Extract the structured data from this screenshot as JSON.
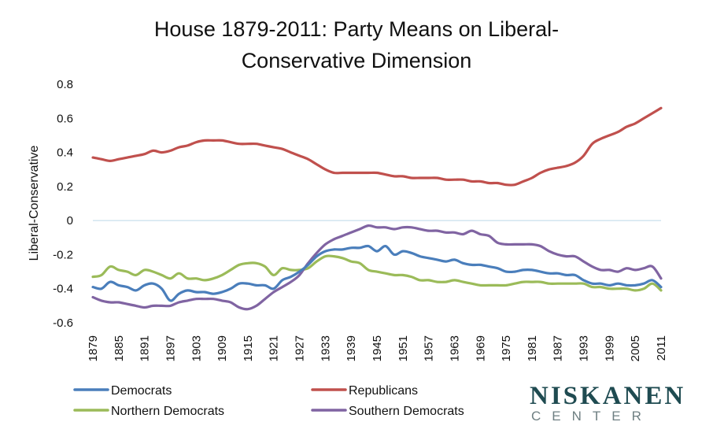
{
  "chart_data": {
    "type": "line",
    "title_lines": [
      "House 1879-2011: Party Means on Liberal-",
      "Conservative Dimension"
    ],
    "ylabel": "Liberal-Conservative",
    "xlabel": "",
    "ylim": [
      -0.6,
      0.8
    ],
    "yticks": [
      "-0.6",
      "-0.4",
      "-0.2",
      "0",
      "0.2",
      "0.4",
      "0.6",
      "0.8"
    ],
    "xticks": [
      "1879",
      "1885",
      "1891",
      "1897",
      "1903",
      "1909",
      "1915",
      "1921",
      "1927",
      "1933",
      "1939",
      "1945",
      "1951",
      "1957",
      "1963",
      "1969",
      "1975",
      "1981",
      "1987",
      "1993",
      "1999",
      "2005",
      "2011"
    ],
    "xrange": [
      1879,
      2011
    ],
    "legend_position": "bottom",
    "x": [
      1879,
      1881,
      1883,
      1885,
      1887,
      1889,
      1891,
      1893,
      1895,
      1897,
      1899,
      1901,
      1903,
      1905,
      1907,
      1909,
      1911,
      1913,
      1915,
      1917,
      1919,
      1921,
      1923,
      1925,
      1927,
      1929,
      1931,
      1933,
      1935,
      1937,
      1939,
      1941,
      1943,
      1945,
      1947,
      1949,
      1951,
      1953,
      1955,
      1957,
      1959,
      1961,
      1963,
      1965,
      1967,
      1969,
      1971,
      1973,
      1975,
      1977,
      1979,
      1981,
      1983,
      1985,
      1987,
      1989,
      1991,
      1993,
      1995,
      1997,
      1999,
      2001,
      2003,
      2005,
      2007,
      2009,
      2011
    ],
    "series": [
      {
        "name": "Democrats",
        "color": "#4a7ebb",
        "values": [
          -0.39,
          -0.4,
          -0.36,
          -0.38,
          -0.39,
          -0.41,
          -0.38,
          -0.37,
          -0.4,
          -0.47,
          -0.43,
          -0.41,
          -0.42,
          -0.42,
          -0.43,
          -0.42,
          -0.4,
          -0.37,
          -0.37,
          -0.38,
          -0.38,
          -0.4,
          -0.35,
          -0.33,
          -0.3,
          -0.26,
          -0.21,
          -0.18,
          -0.17,
          -0.17,
          -0.16,
          -0.16,
          -0.15,
          -0.18,
          -0.15,
          -0.2,
          -0.18,
          -0.19,
          -0.21,
          -0.22,
          -0.23,
          -0.24,
          -0.23,
          -0.25,
          -0.26,
          -0.26,
          -0.27,
          -0.28,
          -0.3,
          -0.3,
          -0.29,
          -0.29,
          -0.3,
          -0.31,
          -0.31,
          -0.32,
          -0.32,
          -0.35,
          -0.37,
          -0.37,
          -0.38,
          -0.37,
          -0.38,
          -0.38,
          -0.37,
          -0.35,
          -0.39
        ]
      },
      {
        "name": "Republicans",
        "color": "#c0504d",
        "values": [
          0.37,
          0.36,
          0.35,
          0.36,
          0.37,
          0.38,
          0.39,
          0.41,
          0.4,
          0.41,
          0.43,
          0.44,
          0.46,
          0.47,
          0.47,
          0.47,
          0.46,
          0.45,
          0.45,
          0.45,
          0.44,
          0.43,
          0.42,
          0.4,
          0.38,
          0.36,
          0.33,
          0.3,
          0.28,
          0.28,
          0.28,
          0.28,
          0.28,
          0.28,
          0.27,
          0.26,
          0.26,
          0.25,
          0.25,
          0.25,
          0.25,
          0.24,
          0.24,
          0.24,
          0.23,
          0.23,
          0.22,
          0.22,
          0.21,
          0.21,
          0.23,
          0.25,
          0.28,
          0.3,
          0.31,
          0.32,
          0.34,
          0.38,
          0.45,
          0.48,
          0.5,
          0.52,
          0.55,
          0.57,
          0.6,
          0.63,
          0.66
        ]
      },
      {
        "name": "Northern Democrats",
        "color": "#9bbb59",
        "values": [
          -0.33,
          -0.32,
          -0.27,
          -0.29,
          -0.3,
          -0.32,
          -0.29,
          -0.3,
          -0.32,
          -0.34,
          -0.31,
          -0.34,
          -0.34,
          -0.35,
          -0.34,
          -0.32,
          -0.29,
          -0.26,
          -0.25,
          -0.25,
          -0.27,
          -0.32,
          -0.28,
          -0.29,
          -0.29,
          -0.28,
          -0.24,
          -0.21,
          -0.21,
          -0.22,
          -0.24,
          -0.25,
          -0.29,
          -0.3,
          -0.31,
          -0.32,
          -0.32,
          -0.33,
          -0.35,
          -0.35,
          -0.36,
          -0.36,
          -0.35,
          -0.36,
          -0.37,
          -0.38,
          -0.38,
          -0.38,
          -0.38,
          -0.37,
          -0.36,
          -0.36,
          -0.36,
          -0.37,
          -0.37,
          -0.37,
          -0.37,
          -0.37,
          -0.39,
          -0.39,
          -0.4,
          -0.4,
          -0.4,
          -0.41,
          -0.4,
          -0.37,
          -0.41
        ]
      },
      {
        "name": "Southern Democrats",
        "color": "#8064a2",
        "values": [
          -0.45,
          -0.47,
          -0.48,
          -0.48,
          -0.49,
          -0.5,
          -0.51,
          -0.5,
          -0.5,
          -0.5,
          -0.48,
          -0.47,
          -0.46,
          -0.46,
          -0.46,
          -0.47,
          -0.48,
          -0.51,
          -0.52,
          -0.5,
          -0.46,
          -0.42,
          -0.39,
          -0.36,
          -0.32,
          -0.25,
          -0.19,
          -0.14,
          -0.11,
          -0.09,
          -0.07,
          -0.05,
          -0.03,
          -0.04,
          -0.04,
          -0.05,
          -0.04,
          -0.04,
          -0.05,
          -0.06,
          -0.06,
          -0.07,
          -0.07,
          -0.08,
          -0.06,
          -0.08,
          -0.09,
          -0.13,
          -0.14,
          -0.14,
          -0.14,
          -0.14,
          -0.15,
          -0.18,
          -0.2,
          -0.21,
          -0.21,
          -0.24,
          -0.27,
          -0.29,
          -0.29,
          -0.3,
          -0.28,
          -0.29,
          -0.28,
          -0.27,
          -0.34
        ]
      }
    ]
  },
  "logo": {
    "main": "NISKANEN",
    "sub": "CENTER"
  }
}
